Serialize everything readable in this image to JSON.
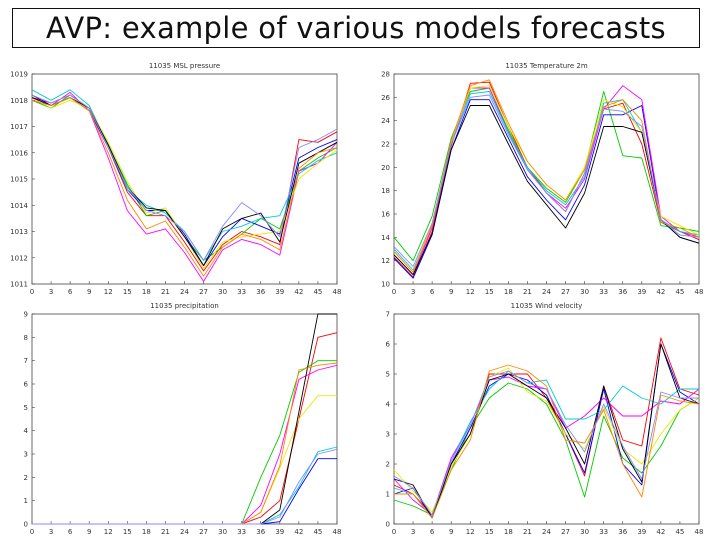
{
  "page": {
    "title": "AVP: example of various models forecasts"
  },
  "colors": {
    "series": [
      "#ff0000",
      "#00cc00",
      "#0000ff",
      "#ff00ff",
      "#00cccc",
      "#e8e800",
      "#000000",
      "#ff8800",
      "#8888ff"
    ]
  },
  "chart_data": [
    {
      "type": "line",
      "title": "11035 MSL pressure",
      "x": [
        0,
        3,
        6,
        9,
        12,
        15,
        18,
        21,
        24,
        27,
        30,
        33,
        36,
        39,
        42,
        45,
        48
      ],
      "ylim": [
        1011,
        1019
      ],
      "y_ticks": [
        1011,
        1012,
        1013,
        1014,
        1015,
        1016,
        1017,
        1018,
        1019
      ],
      "grid": false,
      "series": [
        {
          "values": [
            1018.1,
            1017.9,
            1018.2,
            1017.7,
            1016.2,
            1014.5,
            1013.6,
            1013.6,
            1012.6,
            1011.5,
            1012.5,
            1013.0,
            1012.8,
            1012.5,
            1016.5,
            1016.4,
            1016.8
          ]
        },
        {
          "values": [
            1018.0,
            1017.7,
            1018.2,
            1017.7,
            1016.3,
            1014.8,
            1013.6,
            1013.8,
            1012.8,
            1011.9,
            1012.4,
            1012.9,
            1013.5,
            1013.1,
            1015.3,
            1015.8,
            1016.2
          ]
        },
        {
          "values": [
            1018.2,
            1017.8,
            1018.1,
            1017.6,
            1016.2,
            1014.6,
            1013.8,
            1013.8,
            1012.9,
            1011.7,
            1012.8,
            1013.5,
            1013.2,
            1012.9,
            1015.8,
            1016.2,
            1016.5
          ]
        },
        {
          "values": [
            1018.0,
            1017.8,
            1018.3,
            1017.6,
            1015.8,
            1013.8,
            1012.9,
            1013.1,
            1012.2,
            1011.1,
            1012.3,
            1012.7,
            1012.5,
            1012.1,
            1015.3,
            1015.6,
            1016.4
          ]
        },
        {
          "values": [
            1018.4,
            1018.0,
            1018.4,
            1017.8,
            1016.3,
            1014.6,
            1014.0,
            1013.7,
            1013.0,
            1011.9,
            1013.0,
            1013.2,
            1013.5,
            1013.6,
            1015.2,
            1015.7,
            1016.0
          ]
        },
        {
          "values": [
            1018.1,
            1017.7,
            1018.0,
            1017.7,
            1016.4,
            1014.9,
            1013.7,
            1013.9,
            1012.8,
            1011.6,
            1012.6,
            1012.8,
            1012.9,
            1013.0,
            1015.0,
            1015.6,
            1016.1
          ]
        },
        {
          "values": [
            1018.1,
            1017.8,
            1018.1,
            1017.7,
            1016.3,
            1014.7,
            1013.9,
            1013.8,
            1012.8,
            1011.7,
            1013.1,
            1013.5,
            1013.7,
            1012.6,
            1015.6,
            1016.0,
            1016.4
          ]
        },
        {
          "values": [
            1018.0,
            1017.8,
            1018.1,
            1017.6,
            1016.0,
            1014.2,
            1013.1,
            1013.4,
            1012.4,
            1011.3,
            1012.4,
            1012.9,
            1012.7,
            1012.3,
            1015.4,
            1016.0,
            1016.2
          ]
        },
        {
          "values": [
            1018.2,
            1017.9,
            1018.2,
            1017.7,
            1016.2,
            1014.7,
            1013.8,
            1013.6,
            1013.0,
            1011.9,
            1013.2,
            1014.1,
            1013.6,
            1012.8,
            1016.2,
            1016.5,
            1016.9
          ]
        }
      ]
    },
    {
      "type": "line",
      "title": "11035 Temperature 2m",
      "x": [
        0,
        3,
        6,
        9,
        12,
        15,
        18,
        21,
        24,
        27,
        30,
        33,
        36,
        39,
        42,
        45,
        48
      ],
      "ylim": [
        10,
        28
      ],
      "y_ticks": [
        10,
        12,
        14,
        16,
        18,
        20,
        22,
        24,
        26,
        28
      ],
      "grid": false,
      "series": [
        {
          "values": [
            12.3,
            10.6,
            14.5,
            21.8,
            27.2,
            27.3,
            23.5,
            20.0,
            17.8,
            16.2,
            19.5,
            25.0,
            25.5,
            22.0,
            15.3,
            14.5,
            13.8
          ]
        },
        {
          "values": [
            14.0,
            12.0,
            15.8,
            22.5,
            26.5,
            26.8,
            23.2,
            20.0,
            18.2,
            17.0,
            19.8,
            26.5,
            21.0,
            20.8,
            15.0,
            14.8,
            14.5
          ]
        },
        {
          "values": [
            12.2,
            10.5,
            14.2,
            21.5,
            25.8,
            25.8,
            22.5,
            19.2,
            17.2,
            15.5,
            18.5,
            24.5,
            24.5,
            25.3,
            15.5,
            14.0,
            13.5
          ]
        },
        {
          "values": [
            12.5,
            10.8,
            14.8,
            22.0,
            26.8,
            26.8,
            23.0,
            19.8,
            17.8,
            16.5,
            19.0,
            25.0,
            27.0,
            25.8,
            15.8,
            14.5,
            14.0
          ]
        },
        {
          "values": [
            13.0,
            11.2,
            15.0,
            22.0,
            26.3,
            26.5,
            23.0,
            20.0,
            18.0,
            16.8,
            19.2,
            25.5,
            25.8,
            23.0,
            15.5,
            14.5,
            14.2
          ]
        },
        {
          "values": [
            12.8,
            11.0,
            15.2,
            22.2,
            26.8,
            27.0,
            23.5,
            20.5,
            18.5,
            17.2,
            20.0,
            25.8,
            25.2,
            23.0,
            15.8,
            15.0,
            14.2
          ]
        },
        {
          "values": [
            12.5,
            10.8,
            14.3,
            21.5,
            25.3,
            25.3,
            22.0,
            18.8,
            16.8,
            14.8,
            17.8,
            23.5,
            23.5,
            23.0,
            15.5,
            14.0,
            13.5
          ]
        },
        {
          "values": [
            12.8,
            11.0,
            15.0,
            22.3,
            27.0,
            27.5,
            23.8,
            20.5,
            18.5,
            17.2,
            19.8,
            25.2,
            25.8,
            24.0,
            15.3,
            14.8,
            14.0
          ]
        },
        {
          "values": [
            13.2,
            11.5,
            15.2,
            22.0,
            26.0,
            26.2,
            22.8,
            19.8,
            17.8,
            16.2,
            19.5,
            25.0,
            24.8,
            23.5,
            15.5,
            14.2,
            14.0
          ]
        }
      ]
    },
    {
      "type": "line",
      "title": "11035 precipitation",
      "x": [
        0,
        3,
        6,
        9,
        12,
        15,
        18,
        21,
        24,
        27,
        30,
        33,
        36,
        39,
        42,
        45,
        48
      ],
      "ylim": [
        0,
        9
      ],
      "y_ticks": [
        0,
        1,
        2,
        3,
        4,
        5,
        6,
        7,
        8,
        9
      ],
      "grid": false,
      "series": [
        {
          "values": [
            0,
            0,
            0,
            0,
            0,
            0,
            0,
            0,
            0,
            0,
            0,
            0,
            0.3,
            1.0,
            4.5,
            8.0,
            8.2
          ]
        },
        {
          "values": [
            0,
            0,
            0,
            0,
            0,
            0,
            0,
            0,
            0,
            0,
            0,
            0,
            2.0,
            3.8,
            6.5,
            7.0,
            7.0
          ]
        },
        {
          "values": [
            0,
            0,
            0,
            0,
            0,
            0,
            0,
            0,
            0,
            0,
            0,
            0,
            0,
            0.1,
            1.5,
            2.8,
            2.8
          ]
        },
        {
          "values": [
            0,
            0,
            0,
            0,
            0,
            0,
            0,
            0,
            0,
            0,
            0,
            0,
            0.8,
            3.0,
            6.2,
            6.6,
            6.8
          ]
        },
        {
          "values": [
            0,
            0,
            0,
            0,
            0,
            0,
            0,
            0,
            0,
            0,
            0,
            0,
            0,
            0.4,
            1.6,
            3.1,
            3.3
          ]
        },
        {
          "values": [
            0,
            0,
            0,
            0,
            0,
            0,
            0,
            0,
            0,
            0,
            0,
            0,
            0.5,
            2.4,
            4.5,
            5.5,
            5.5
          ]
        },
        {
          "values": [
            0,
            0,
            0,
            0,
            0,
            0,
            0,
            0,
            0,
            0,
            0,
            0,
            0,
            0.6,
            4.8,
            9.0,
            9.0
          ]
        },
        {
          "values": [
            0,
            0,
            0,
            0,
            0,
            0,
            0,
            0,
            0,
            0,
            0,
            0,
            0.5,
            2.5,
            6.6,
            6.8,
            6.9
          ]
        },
        {
          "values": [
            0,
            0,
            0,
            0,
            0,
            0,
            0,
            0,
            0,
            0,
            0,
            0,
            0,
            0.3,
            1.8,
            3.0,
            3.2
          ]
        }
      ]
    },
    {
      "type": "line",
      "title": "11035 Wind velocity",
      "x": [
        0,
        3,
        6,
        9,
        12,
        15,
        18,
        21,
        24,
        27,
        30,
        33,
        36,
        39,
        42,
        45,
        48
      ],
      "ylim": [
        0,
        7
      ],
      "y_ticks": [
        0,
        1,
        2,
        3,
        4,
        5,
        6,
        7
      ],
      "grid": false,
      "series": [
        {
          "values": [
            1.3,
            1.0,
            0.3,
            2.0,
            3.0,
            5.0,
            5.0,
            5.0,
            4.2,
            3.0,
            1.6,
            4.6,
            2.8,
            2.6,
            6.2,
            4.5,
            4.3
          ]
        },
        {
          "values": [
            0.8,
            0.6,
            0.3,
            1.8,
            3.2,
            4.2,
            4.7,
            4.5,
            4.0,
            2.8,
            0.9,
            3.6,
            2.2,
            1.7,
            2.6,
            3.8,
            4.2
          ]
        },
        {
          "values": [
            1.0,
            1.2,
            0.2,
            2.0,
            3.2,
            4.6,
            5.0,
            4.8,
            4.3,
            3.0,
            1.7,
            4.5,
            2.0,
            1.3,
            6.0,
            4.4,
            4.0
          ]
        },
        {
          "values": [
            1.5,
            0.8,
            0.3,
            2.2,
            3.3,
            4.8,
            4.9,
            4.6,
            4.5,
            3.2,
            3.6,
            4.2,
            3.6,
            3.6,
            4.1,
            4.0,
            4.5
          ]
        },
        {
          "values": [
            1.2,
            1.0,
            0.2,
            2.1,
            3.4,
            4.5,
            5.1,
            4.7,
            4.8,
            3.5,
            3.5,
            3.8,
            4.6,
            4.2,
            4.0,
            4.5,
            4.5
          ]
        },
        {
          "values": [
            1.8,
            1.1,
            0.4,
            1.9,
            3.0,
            4.9,
            5.2,
            4.4,
            4.1,
            3.0,
            2.5,
            3.9,
            2.5,
            2.0,
            3.0,
            3.8,
            4.2
          ]
        },
        {
          "values": [
            1.5,
            1.3,
            0.2,
            2.0,
            3.0,
            4.8,
            5.0,
            4.6,
            4.2,
            3.2,
            2.0,
            4.6,
            2.5,
            1.4,
            6.0,
            4.2,
            4.0
          ]
        },
        {
          "values": [
            1.0,
            1.0,
            0.2,
            1.8,
            2.8,
            5.1,
            5.3,
            5.1,
            4.6,
            2.8,
            2.7,
            3.8,
            2.0,
            0.9,
            4.3,
            4.1,
            4.0
          ]
        },
        {
          "values": [
            1.6,
            1.2,
            0.3,
            2.1,
            3.3,
            4.9,
            5.1,
            4.7,
            4.5,
            3.3,
            2.4,
            4.0,
            2.6,
            1.5,
            4.4,
            4.2,
            4.2
          ]
        }
      ]
    }
  ]
}
